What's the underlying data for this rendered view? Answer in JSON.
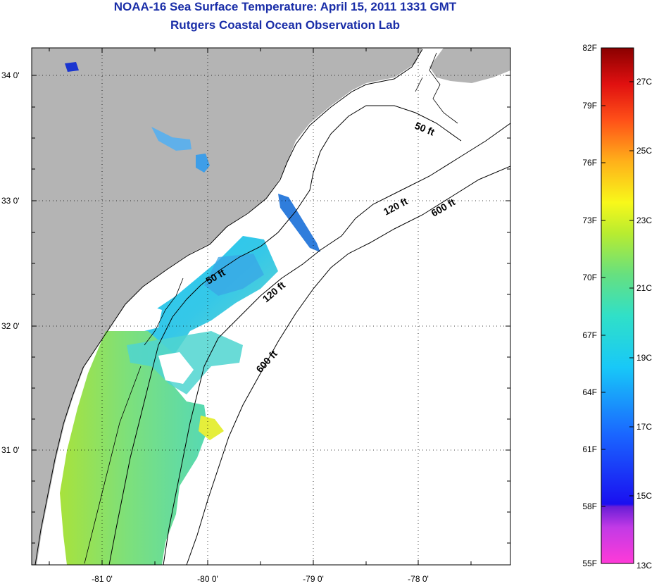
{
  "title_line1": "NOAA-16 Sea Surface Temperature:  April 15, 2011 1331 GMT",
  "title_line2": "Rutgers Coastal Ocean Observation Lab",
  "map": {
    "lon_labels": [
      "-81 0'",
      "-80 0'",
      "-79 0'",
      "-78 0'"
    ],
    "lat_labels": [
      "34 0'",
      "33 0'",
      "32 0'",
      "31 0'"
    ],
    "contour_labels": [
      "50 ft",
      "120 ft",
      "600 ft",
      "50 ft",
      "120 ft",
      "600 ft"
    ],
    "land_color": "#b4b4b4",
    "no_data_color": "#ffffff"
  },
  "colorbar": {
    "fahrenheit_labels": [
      "82F",
      "79F",
      "76F",
      "73F",
      "70F",
      "67F",
      "64F",
      "61F",
      "58F",
      "55F"
    ],
    "celsius_labels": [
      "27C",
      "25C",
      "23C",
      "21C",
      "19C",
      "17C",
      "15C",
      "13C"
    ]
  }
}
